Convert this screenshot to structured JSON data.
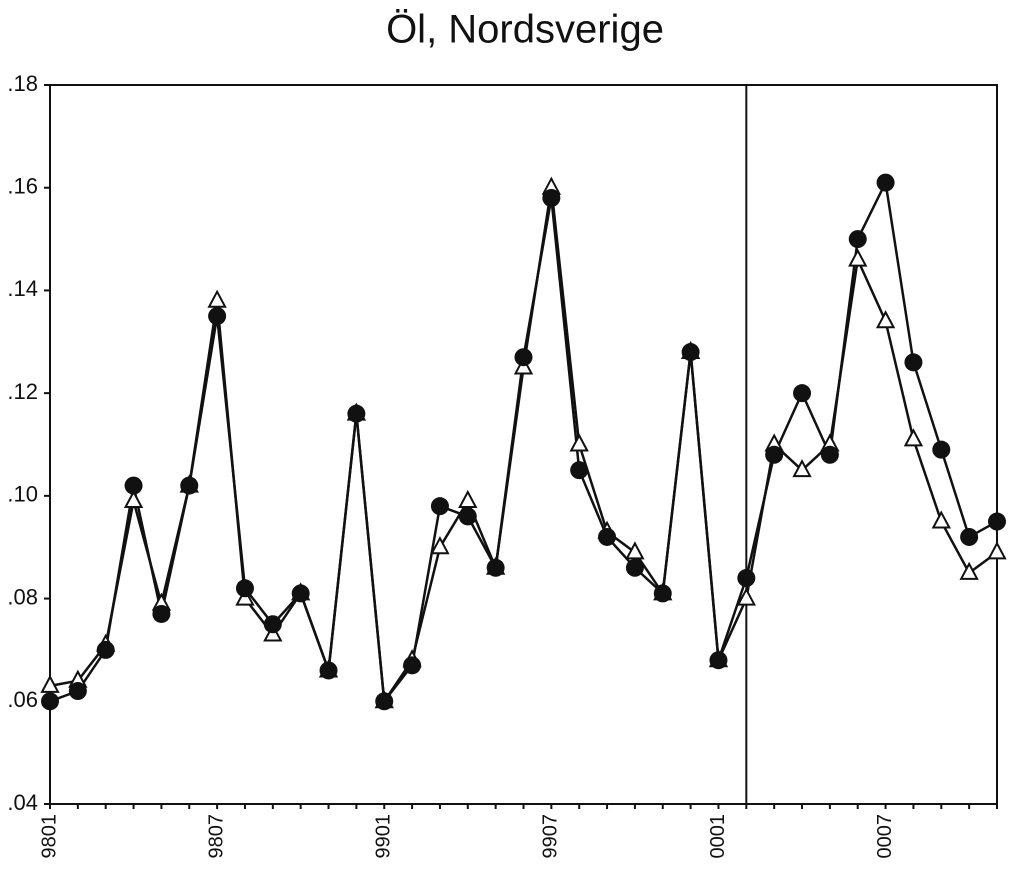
{
  "chart_data": {
    "type": "line",
    "title": "Öl, Nordsverige",
    "categories": [
      "9801",
      null,
      null,
      null,
      null,
      null,
      "9807",
      null,
      null,
      null,
      null,
      null,
      "9901",
      null,
      null,
      null,
      null,
      null,
      "9907",
      null,
      null,
      null,
      null,
      null,
      "0001",
      null,
      null,
      null,
      null,
      null,
      "0007",
      null,
      null,
      null,
      null
    ],
    "series": [
      {
        "color": "#111111",
        "marker": "triangle",
        "values": [
          0.063,
          0.064,
          0.071,
          0.099,
          0.079,
          0.102,
          0.138,
          0.08,
          0.073,
          0.081,
          0.066,
          0.116,
          0.06,
          0.068,
          0.09,
          0.099,
          0.086,
          0.125,
          0.16,
          0.11,
          0.093,
          0.089,
          0.081,
          0.128,
          0.068,
          0.08,
          0.11,
          0.105,
          0.11,
          0.146,
          0.134,
          0.111,
          0.095,
          0.085,
          0.089
        ]
      },
      {
        "color": "#111111",
        "marker": "circle",
        "values": [
          0.06,
          0.062,
          0.07,
          0.102,
          0.077,
          0.102,
          0.135,
          0.082,
          0.075,
          0.081,
          0.066,
          0.116,
          0.06,
          0.067,
          0.098,
          0.096,
          0.086,
          0.127,
          0.158,
          0.105,
          0.092,
          0.086,
          0.081,
          0.128,
          0.068,
          0.084,
          0.108,
          0.12,
          0.108,
          0.15,
          0.161,
          0.126,
          0.109,
          0.092,
          0.095
        ]
      }
    ],
    "ylim": [
      0.04,
      0.18
    ],
    "yticks": [
      {
        "value": 0.04,
        "label": ".04"
      },
      {
        "value": 0.06,
        "label": ".06"
      },
      {
        "value": 0.08,
        "label": ".08"
      },
      {
        "value": 0.1,
        "label": ".10"
      },
      {
        "value": 0.12,
        "label": ".12"
      },
      {
        "value": 0.14,
        "label": ".14"
      },
      {
        "value": 0.16,
        "label": ".16"
      },
      {
        "value": 0.18,
        "label": ".18"
      }
    ],
    "vline_category_index": 25,
    "grid": false
  }
}
